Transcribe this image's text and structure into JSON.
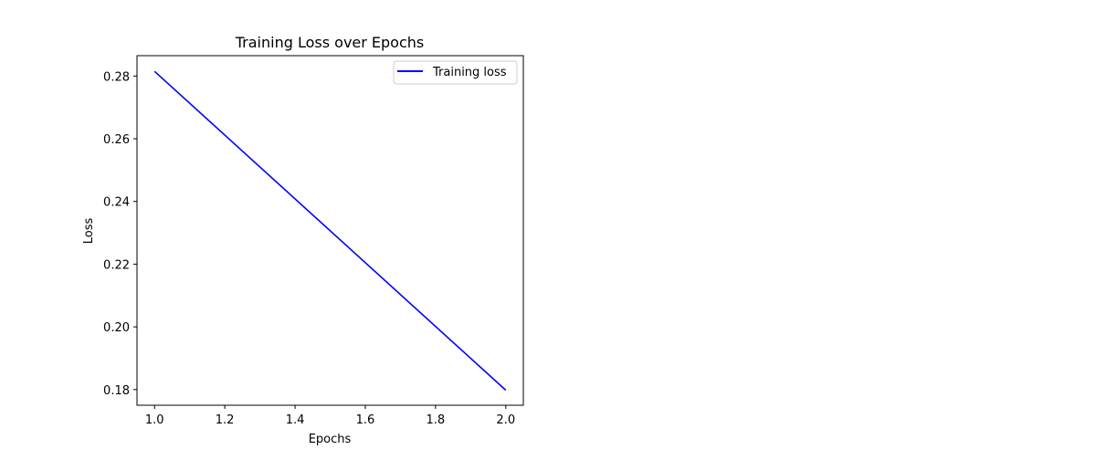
{
  "chart_data": {
    "type": "line",
    "title": "Training Loss over Epochs",
    "xlabel": "Epochs",
    "ylabel": "Loss",
    "xlim": [
      0.95,
      2.05
    ],
    "ylim": [
      0.175,
      0.2865
    ],
    "x_ticks": [
      1.0,
      1.2,
      1.4,
      1.6,
      1.8,
      2.0
    ],
    "x_tick_labels": [
      "1.0",
      "1.2",
      "1.4",
      "1.6",
      "1.8",
      "2.0"
    ],
    "y_ticks": [
      0.18,
      0.2,
      0.22,
      0.24,
      0.26,
      0.28
    ],
    "y_tick_labels": [
      "0.18",
      "0.20",
      "0.22",
      "0.24",
      "0.26",
      "0.28"
    ],
    "grid": false,
    "legend_position": "top-right",
    "series": [
      {
        "name": "Training loss",
        "color": "#0000ff",
        "x": [
          1.0,
          2.0
        ],
        "y": [
          0.2815,
          0.1798
        ]
      }
    ]
  }
}
